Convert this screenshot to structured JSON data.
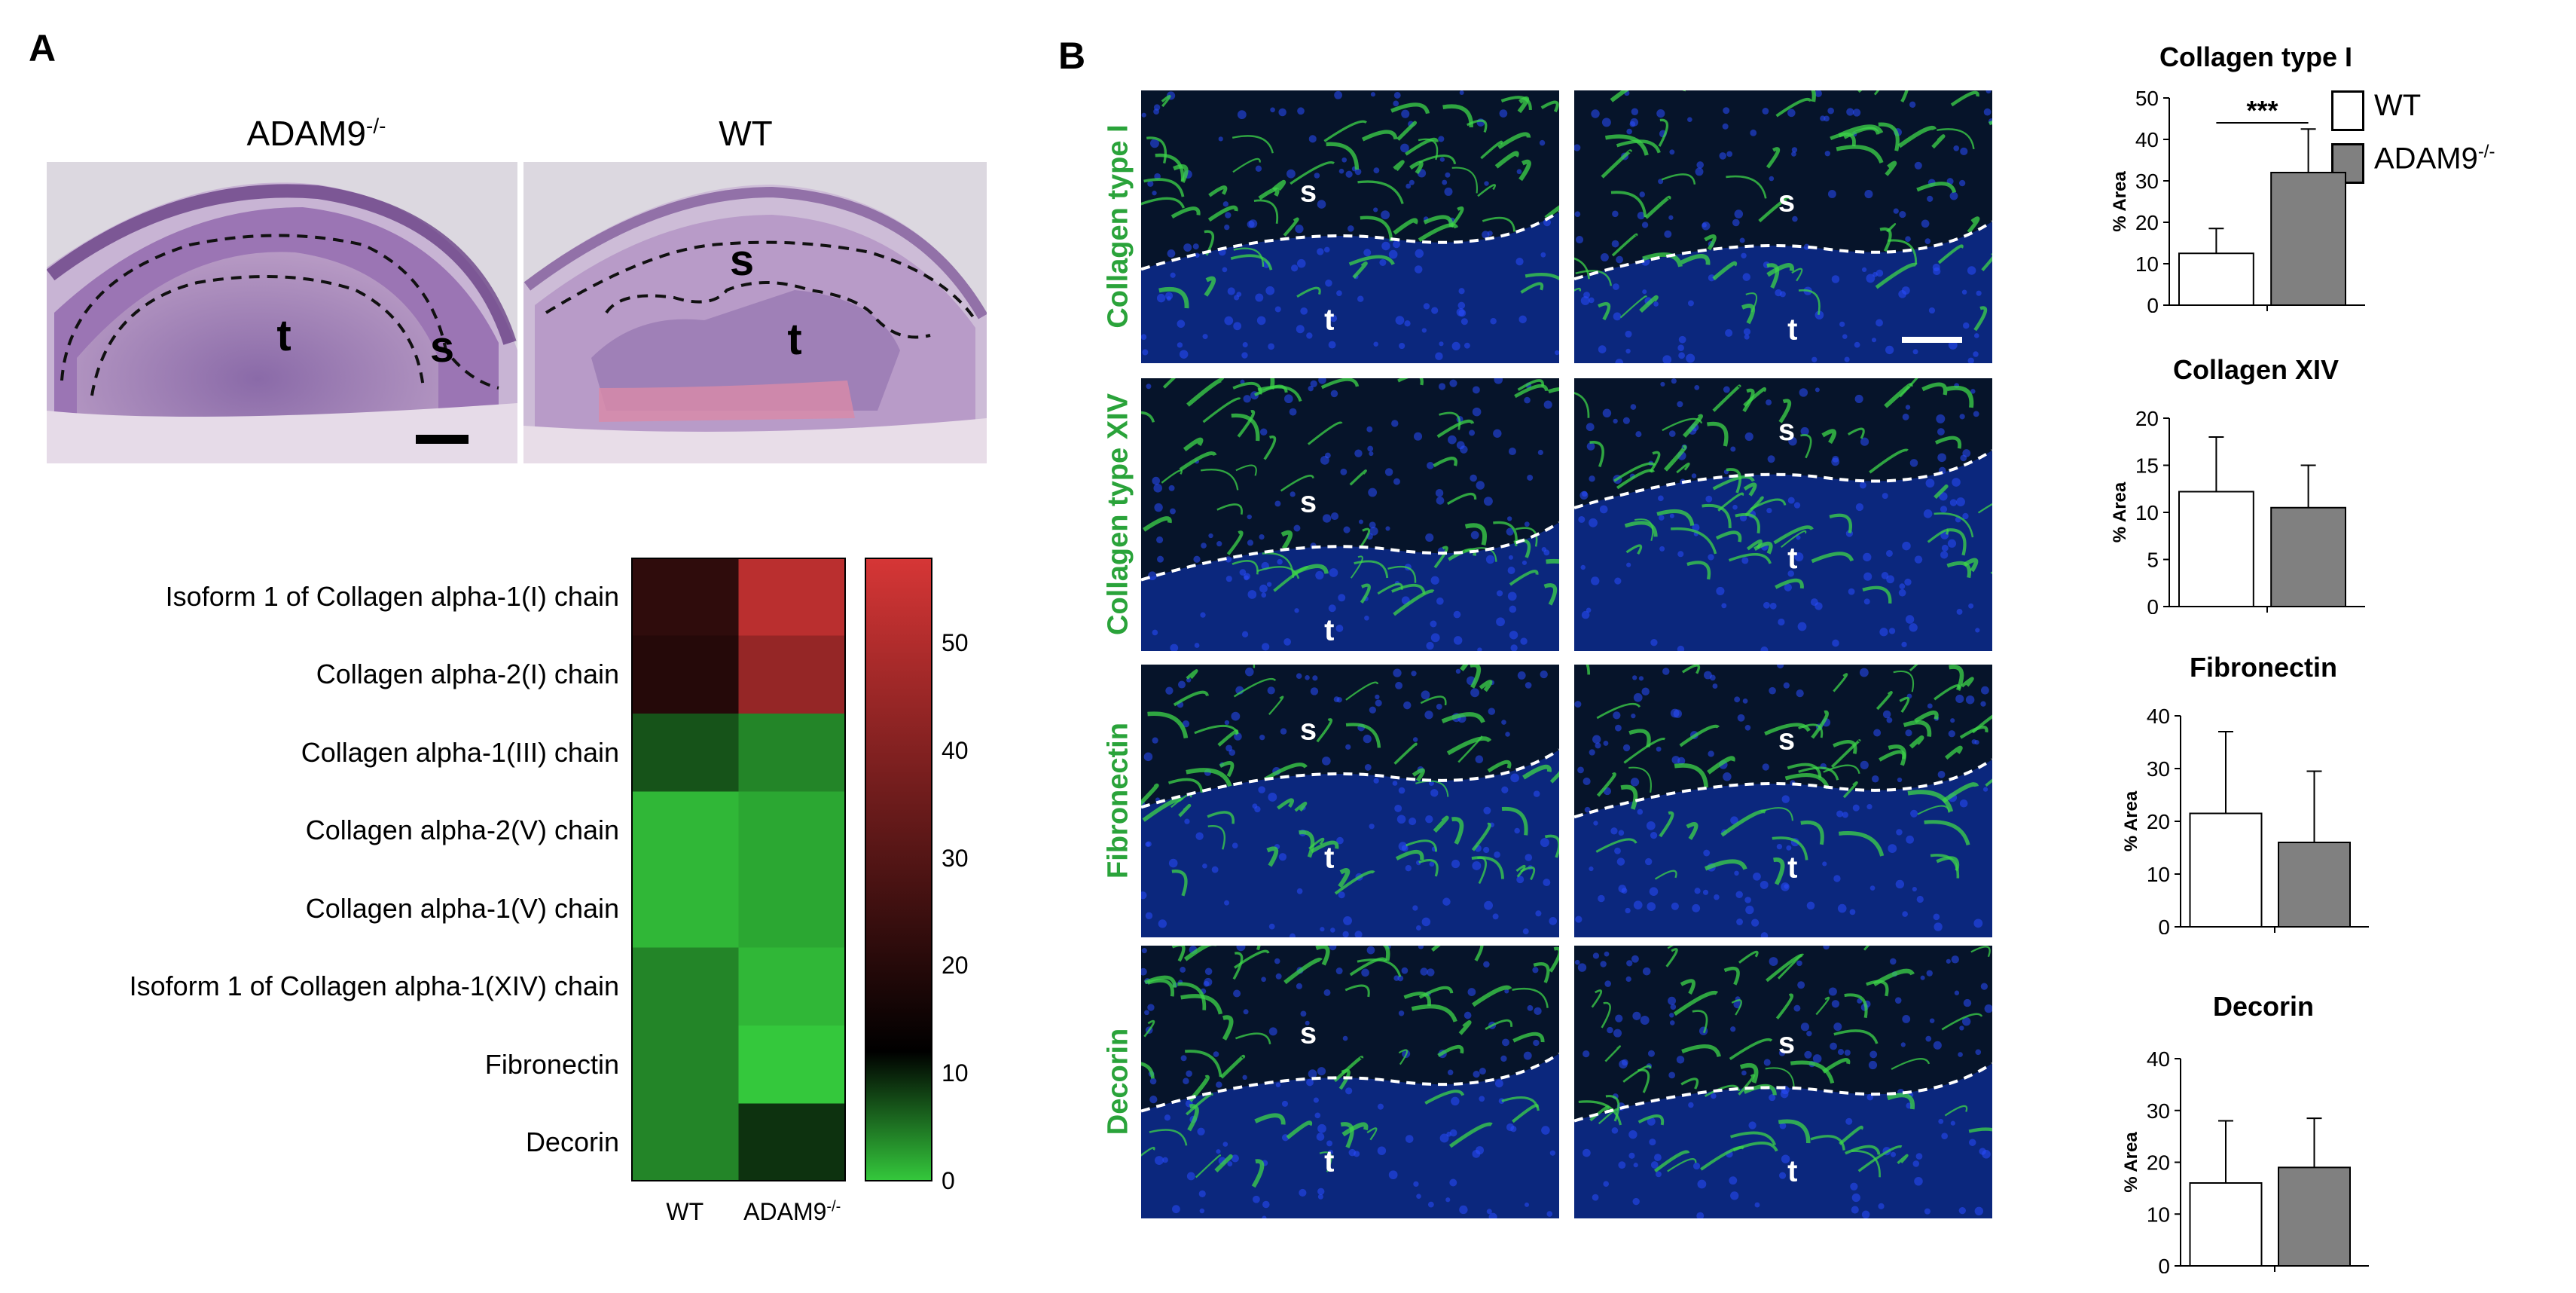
{
  "panel_a": {
    "letter": "A",
    "histology": {
      "left_title": "ADAM9",
      "left_title_sup": "-/-",
      "right_title": "WT",
      "labels_left": {
        "tumor": "t",
        "stroma": "s"
      },
      "labels_right": {
        "tumor": "t",
        "stroma": "s"
      }
    },
    "heatmap": {
      "rows": [
        "Isoform 1 of Collagen alpha-1(I) chain",
        "Collagen alpha-2(I) chain",
        "Collagen alpha-1(III) chain",
        "Collagen alpha-2(V) chain",
        "Collagen alpha-1(V) chain",
        "Isoform 1 of Collagen alpha-1(XIV) chain",
        "Fibronectin",
        "Decorin"
      ],
      "columns": [
        "WT",
        "ADAM9"
      ],
      "column_sup": [
        "",
        "-/-"
      ],
      "values": [
        [
          22,
          52
        ],
        [
          20,
          44
        ],
        [
          7,
          4
        ],
        [
          1,
          2
        ],
        [
          1,
          2
        ],
        [
          4,
          1
        ],
        [
          4,
          0
        ],
        [
          4,
          9
        ]
      ],
      "colorbar": {
        "ticks": [
          "50",
          "40",
          "30",
          "20",
          "10",
          "0"
        ],
        "tick_values": [
          50,
          40,
          30,
          20,
          10,
          0
        ],
        "min": 0,
        "max": 58,
        "colors": {
          "low": "#34c83c",
          "mid": "#000000",
          "high": "#d63636"
        }
      }
    }
  },
  "panel_b": {
    "letter": "B",
    "stains": [
      {
        "label": "Collagen type I",
        "left": {
          "s": "s",
          "t": "t"
        },
        "right": {
          "s": "s",
          "t": "t"
        }
      },
      {
        "label": "Collagen type XIV",
        "left": {
          "s": "s",
          "t": "t"
        },
        "right": {
          "s": "s",
          "t": "t"
        }
      },
      {
        "label": "Fibronectin",
        "left": {
          "s": "s",
          "t": "t"
        },
        "right": {
          "s": "s",
          "t": "t"
        }
      },
      {
        "label": "Decorin",
        "left": {
          "s": "s",
          "t": "t"
        },
        "right": {
          "s": "s",
          "t": "t"
        }
      }
    ],
    "legend": {
      "items": [
        {
          "label": "WT",
          "sup": "",
          "color": "#ffffff"
        },
        {
          "label": "ADAM9",
          "sup": "-/-",
          "color": "#808080"
        }
      ]
    },
    "chart_data": [
      {
        "type": "bar",
        "title": "Collagen type I",
        "ylabel": "% Area",
        "ylim": [
          0,
          50
        ],
        "yticks": [
          0,
          10,
          20,
          30,
          40,
          50
        ],
        "categories": [
          "WT",
          "ADAM9-/-"
        ],
        "values": [
          12.5,
          32
        ],
        "errors": [
          6,
          10.5
        ],
        "significance": "***"
      },
      {
        "type": "bar",
        "title": "Collagen XIV",
        "ylabel": "% Area",
        "ylim": [
          0,
          20
        ],
        "yticks": [
          0,
          5,
          10,
          15,
          20
        ],
        "categories": [
          "WT",
          "ADAM9-/-"
        ],
        "values": [
          12.2,
          10.5
        ],
        "errors": [
          5.8,
          4.5
        ],
        "significance": ""
      },
      {
        "type": "bar",
        "title": "Fibronectin",
        "ylabel": "% Area",
        "ylim": [
          0,
          40
        ],
        "yticks": [
          0,
          10,
          20,
          30,
          40
        ],
        "categories": [
          "WT",
          "ADAM9-/-"
        ],
        "values": [
          21.5,
          16
        ],
        "errors": [
          15.5,
          13.5
        ],
        "significance": ""
      },
      {
        "type": "bar",
        "title": "Decorin",
        "ylabel": "% Area",
        "ylim": [
          0,
          40
        ],
        "yticks": [
          0,
          10,
          20,
          30,
          40
        ],
        "categories": [
          "WT",
          "ADAM9-/-"
        ],
        "values": [
          16,
          19
        ],
        "errors": [
          12,
          9.5
        ],
        "significance": ""
      }
    ]
  }
}
